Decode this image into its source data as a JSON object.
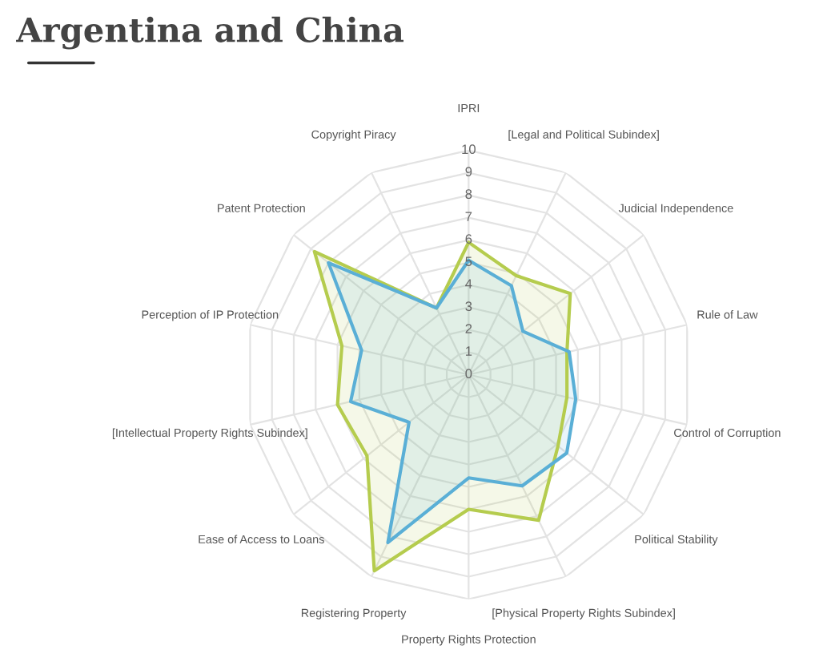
{
  "chart_data": {
    "type": "radar",
    "title": "Argentina and China",
    "categories": [
      "IPRI",
      "[Legal and Political Subindex]",
      "Judicial Independence",
      "Rule of Law",
      "Control of Corruption",
      "Political Stability",
      "[Physical Property Rights Subindex]",
      "Property Rights Protection",
      "Registering Property",
      "Ease of Access to Loans",
      "[Intellectual Property Rights Subindex]",
      "Perception of IP Protection",
      "Patent Protection",
      "Copyright Piracy"
    ],
    "series": [
      {
        "color": "#b5cc4e",
        "values": [
          5.9,
          4.9,
          5.8,
          4.5,
          4.5,
          5.1,
          7.2,
          6.0,
          9.7,
          5.8,
          6.0,
          5.8,
          8.8,
          3.3
        ]
      },
      {
        "color": "#5aafd6",
        "values": [
          5.1,
          4.4,
          3.1,
          4.6,
          4.9,
          5.6,
          5.5,
          4.6,
          8.3,
          3.4,
          5.4,
          4.9,
          8.0,
          3.3
        ]
      }
    ],
    "ylim": [
      0,
      10
    ],
    "yticks": [
      0,
      1,
      2,
      3,
      4,
      5,
      6,
      7,
      8,
      9,
      10
    ],
    "grid": true,
    "marker": "none",
    "line_style": "solid"
  }
}
